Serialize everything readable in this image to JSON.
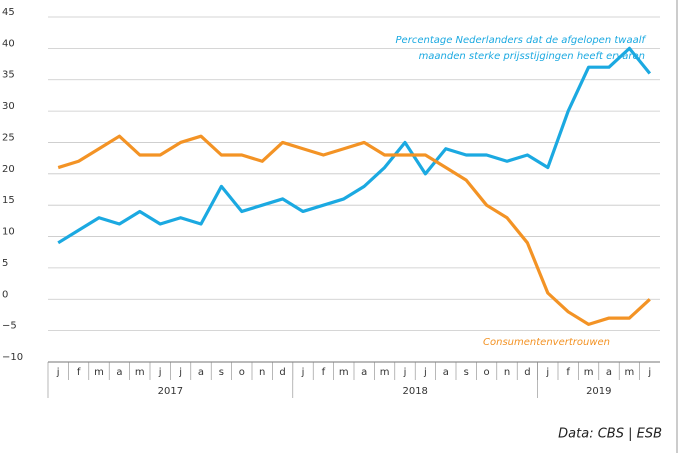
{
  "chart_data": {
    "type": "line",
    "categories": [
      "j",
      "f",
      "m",
      "a",
      "m",
      "j",
      "j",
      "a",
      "s",
      "o",
      "n",
      "d",
      "j",
      "f",
      "m",
      "a",
      "m",
      "j",
      "j",
      "a",
      "s",
      "o",
      "n",
      "d",
      "j",
      "f",
      "m",
      "a",
      "m",
      "j"
    ],
    "groups": [
      {
        "label": "2017",
        "size": 12
      },
      {
        "label": "2018",
        "size": 12
      },
      {
        "label": "2019",
        "size": 6
      }
    ],
    "series": [
      {
        "color": "#1ba9e1",
        "values": [
          9,
          11,
          13,
          12,
          14,
          12,
          13,
          12,
          18,
          14,
          15,
          16,
          14,
          15,
          16,
          18,
          21,
          25,
          20,
          24,
          23,
          23,
          22,
          23,
          21,
          30,
          37,
          37,
          40,
          36
        ]
      },
      {
        "color": "#f39325",
        "values": [
          21,
          22,
          24,
          26,
          23,
          23,
          25,
          26,
          23,
          23,
          22,
          25,
          24,
          23,
          24,
          25,
          23,
          23,
          23,
          21,
          19,
          15,
          13,
          9,
          1,
          -2,
          -4,
          -3,
          -3,
          0
        ]
      }
    ],
    "annotations": [
      {
        "text": "Percentage Nederlanders dat de afgelopen twaalf",
        "color": "#1ba9e1"
      },
      {
        "text": "maanden sterke prijsstijgingen heeft ervaren",
        "color": "#1ba9e1"
      },
      {
        "text": "Consumentenvertrouwen",
        "color": "#f39325"
      }
    ],
    "ylim": [
      -10,
      45
    ],
    "yticks": [
      {
        "value": -10,
        "label": "−10"
      },
      {
        "value": -5,
        "label": "−5"
      },
      0,
      5,
      10,
      15,
      20,
      25,
      30,
      35,
      40,
      45
    ],
    "grid": true,
    "source": "Data: CBS | ESB"
  }
}
